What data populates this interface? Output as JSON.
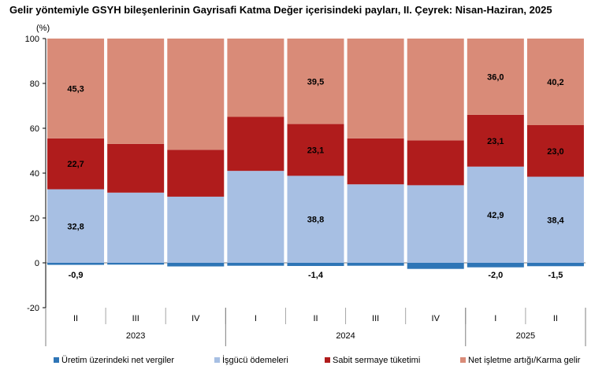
{
  "chart_data": {
    "type": "bar",
    "stacked": true,
    "title": "Gelir yöntemiyle GSYH bileşenlerinin Gayrisafi Katma Değer içerisindeki payları, II. Çeyrek: Nisan-Haziran, 2025",
    "ylabel": "(%)",
    "ylim": [
      -20,
      100
    ],
    "yticks": [
      -20,
      0,
      20,
      40,
      60,
      80,
      100
    ],
    "grid": false,
    "legend_position": "bottom",
    "categories": [
      "II",
      "III",
      "IV",
      "I",
      "II",
      "III",
      "IV",
      "I",
      "II"
    ],
    "year_groups": [
      {
        "label": "2023",
        "start": 0,
        "end": 2
      },
      {
        "label": "2024",
        "start": 3,
        "end": 6
      },
      {
        "label": "2025",
        "start": 7,
        "end": 8
      }
    ],
    "series": [
      {
        "name": "Üretim üzerindeki net vergiler",
        "color": "#2e75b6",
        "values": [
          -0.9,
          -0.8,
          -1.6,
          -1.3,
          -1.4,
          -1.3,
          -2.7,
          -2.0,
          -1.5
        ],
        "labels": [
          "-0,9",
          "",
          "",
          "",
          "-1,4",
          "",
          "",
          "-2,0",
          "-1,5"
        ]
      },
      {
        "name": "İşgücü ödemeleri",
        "color": "#a7bfe3",
        "values": [
          32.8,
          31.3,
          29.5,
          41.0,
          38.8,
          35.0,
          34.6,
          42.9,
          38.4
        ],
        "labels": [
          "32,8",
          "",
          "",
          "",
          "38,8",
          "",
          "",
          "42,9",
          "38,4"
        ]
      },
      {
        "name": "Sabit sermaye tüketimi",
        "color": "#b01c1c",
        "values": [
          22.7,
          21.7,
          20.9,
          24.1,
          23.1,
          20.5,
          20.0,
          23.1,
          23.0
        ],
        "labels": [
          "22,7",
          "",
          "",
          "",
          "23,1",
          "",
          "",
          "23,1",
          "23,0"
        ]
      },
      {
        "name": "Net işletme artığı/Karma gelir",
        "color": "#d98b78",
        "values": [
          45.3,
          47.8,
          51.2,
          36.2,
          39.5,
          45.8,
          48.1,
          36.0,
          40.2
        ],
        "labels": [
          "45,3",
          "",
          "",
          "",
          "39,5",
          "",
          "",
          "36,0",
          "40,2"
        ]
      }
    ]
  }
}
